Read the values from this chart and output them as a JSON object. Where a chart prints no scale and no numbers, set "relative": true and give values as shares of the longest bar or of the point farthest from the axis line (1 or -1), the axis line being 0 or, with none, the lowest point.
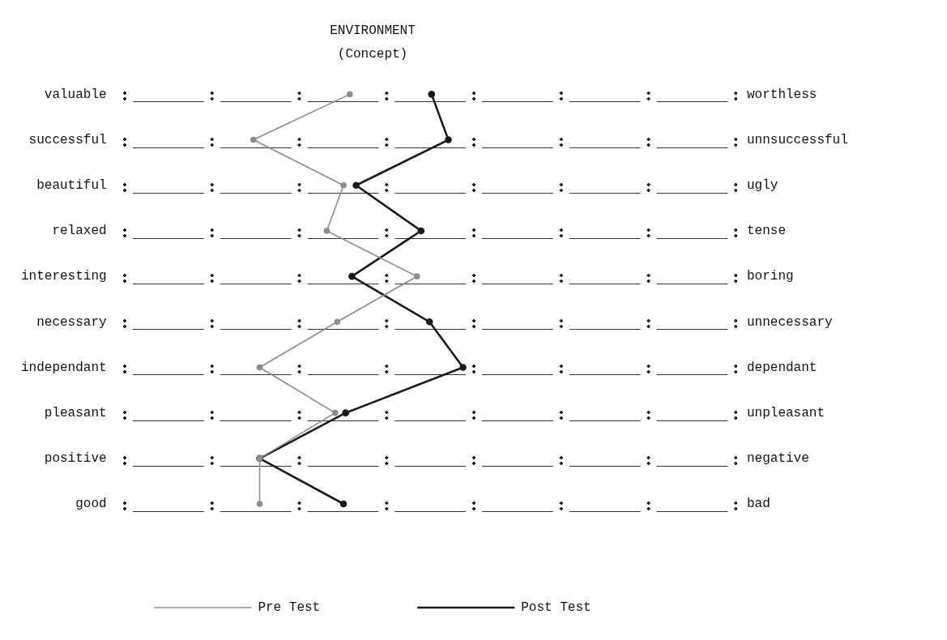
{
  "chart_data": {
    "type": "line",
    "orientation": "horizontal",
    "title": "ENVIRONMENT",
    "subtitle": "(Concept)",
    "relative": true,
    "categories": [
      "valuable",
      "successful",
      "beautiful",
      "relaxed",
      "interesting",
      "necessary",
      "independant",
      "pleasant",
      "positive",
      "good"
    ],
    "annotations": [
      "worthless",
      "unnsuccessful",
      "ugly",
      "tense",
      "boring",
      "unnecessary",
      "dependant",
      "unpleasant",
      "negative",
      "bad"
    ],
    "series": [
      {
        "name": "Pre Test",
        "color": "#8c8c8c",
        "values": [
          0.46,
          0,
          0.43,
          0.35,
          0.78,
          0.4,
          0.03,
          0.39,
          0.03,
          0.03
        ]
      },
      {
        "name": "Post Test",
        "color": "#1a1a1a",
        "values": [
          0.85,
          0.93,
          0.49,
          0.8,
          0.47,
          0.84,
          1,
          0.44,
          0.03,
          0.43
        ]
      }
    ],
    "marker": "circle",
    "line_style": "solid",
    "legend": "bottom"
  }
}
